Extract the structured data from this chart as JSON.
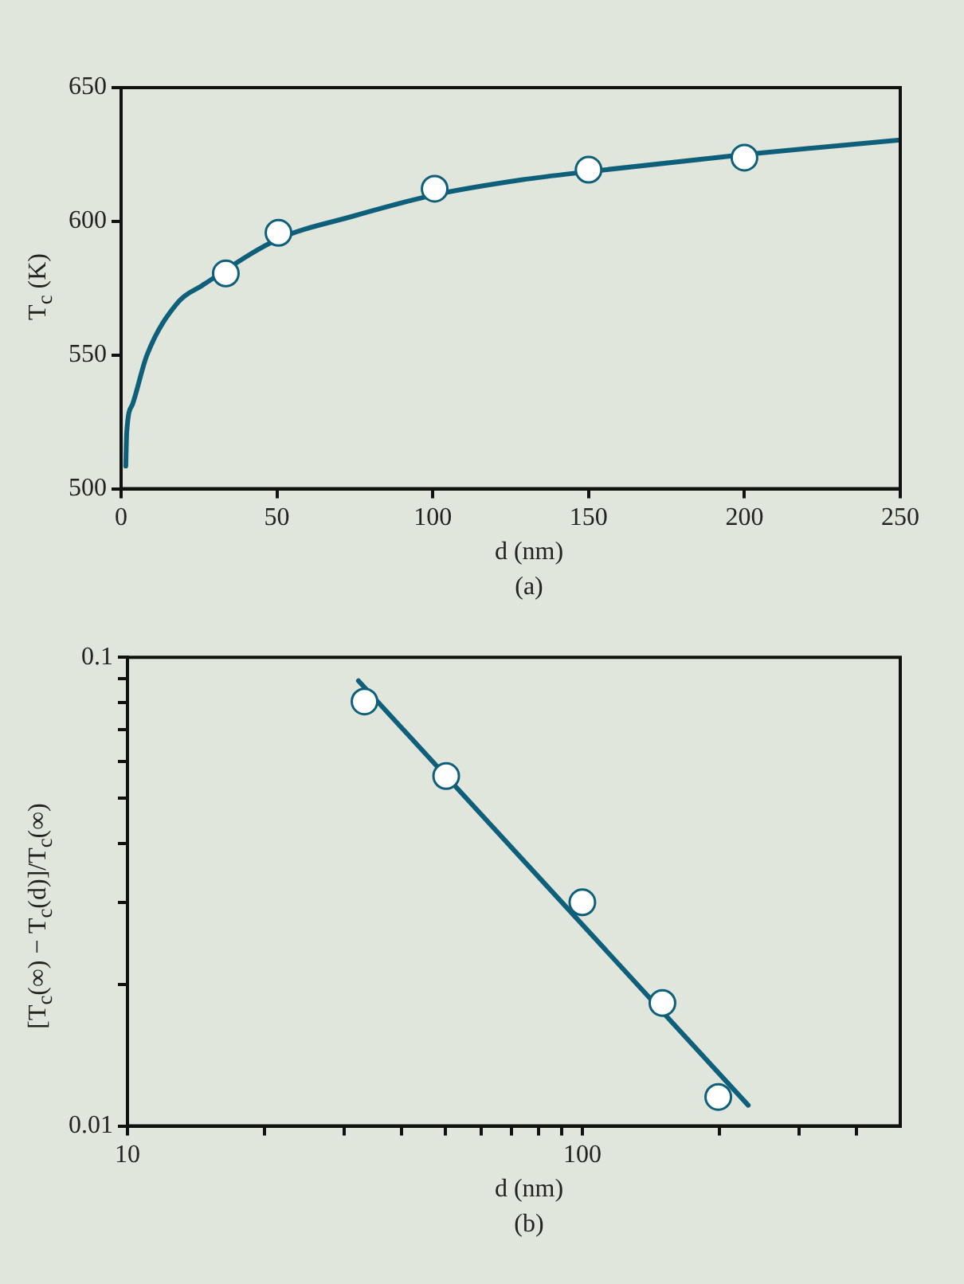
{
  "chart_data": [
    {
      "type": "scatter",
      "xlabel": "d (nm)",
      "ylabel": "T$_{c}$ (K)",
      "annotations": [
        "(a)"
      ],
      "xlim": [
        0,
        250
      ],
      "xticks": [
        0,
        50,
        100,
        150,
        200,
        250
      ],
      "ylim": [
        500,
        650
      ],
      "yticks": [
        500,
        550,
        600,
        650
      ],
      "series": [
        {
          "type": "line",
          "color": "#0e5f7a",
          "marker": "none",
          "x": [
            1.5,
            1.8,
            3.7,
            8.3,
            18.4,
            26,
            50.5,
            73.4,
            100.6,
            128.5,
            150,
            200,
            250
          ],
          "values": [
            508.5,
            521,
            531.7,
            550,
            569.9,
            576,
            593.4,
            601.6,
            609.9,
            615.5,
            618.6,
            625,
            630.4
          ]
        },
        {
          "type": "scatter",
          "color": "#0e5f7a",
          "marker": "circle",
          "x": [
            33.6,
            50.5,
            100.6,
            150,
            200
          ],
          "values": [
            580.5,
            595.7,
            612.2,
            619.3,
            623.8
          ]
        }
      ]
    },
    {
      "type": "scatter",
      "xlabel": "d (nm)",
      "ylabel": "[T$_{c}$(∞) − T$_{c}$(d)]/T$_{c}$(∞)",
      "annotations": [
        "(b)"
      ],
      "log": "xy",
      "xlim": [
        10,
        500
      ],
      "xticks": [
        10,
        {
          "value": 20,
          "label": null
        },
        {
          "value": 30,
          "label": null
        },
        {
          "value": 40,
          "label": null
        },
        {
          "value": 50,
          "label": null
        },
        {
          "value": 60,
          "label": null
        },
        {
          "value": 70,
          "label": null
        },
        {
          "value": 80,
          "label": null
        },
        {
          "value": 90,
          "label": null
        },
        100,
        {
          "value": 200,
          "label": null
        },
        {
          "value": 300,
          "label": null
        },
        {
          "value": 400,
          "label": null
        }
      ],
      "ylim": [
        0.01,
        0.1
      ],
      "yticks": [
        0.01,
        {
          "value": 0.02,
          "label": null
        },
        {
          "value": 0.03,
          "label": null
        },
        {
          "value": 0.04,
          "label": null
        },
        {
          "value": 0.05,
          "label": null
        },
        {
          "value": 0.06,
          "label": null
        },
        {
          "value": 0.07,
          "label": null
        },
        {
          "value": 0.08,
          "label": null
        },
        {
          "value": 0.09,
          "label": null
        },
        0.1
      ],
      "series": [
        {
          "type": "line",
          "color": "#0e5f7a",
          "marker": "none",
          "x": [
            32.2,
            231.6
          ],
          "values": [
            0.0891,
            0.01107
          ]
        },
        {
          "type": "scatter",
          "color": "#0e5f7a",
          "marker": "circle",
          "x": [
            33.2,
            50.2,
            100,
            150,
            199
          ],
          "values": [
            0.0805,
            0.0558,
            0.03,
            0.0183,
            0.01153
          ]
        }
      ]
    }
  ]
}
